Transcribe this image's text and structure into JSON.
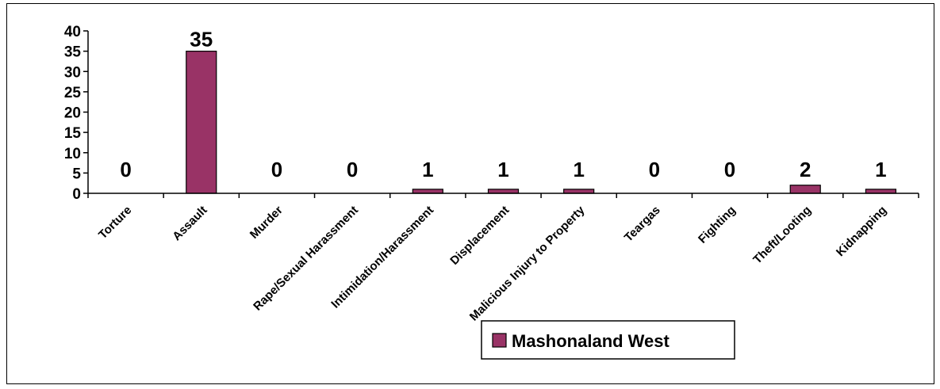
{
  "chart_data": {
    "type": "bar",
    "categories": [
      "Torture",
      "Assault",
      "Murder",
      "Rape/Sexual Harassment",
      "Intimidation/Harassment",
      "Displacement",
      "Malicious Injury to Property",
      "Teargas",
      "Fighting",
      "Theft/Looting",
      "Kidnapping"
    ],
    "series": [
      {
        "name": "Mashonaland West",
        "values": [
          0,
          35,
          0,
          0,
          1,
          1,
          1,
          0,
          0,
          2,
          1
        ]
      }
    ],
    "ylim": [
      0,
      40
    ],
    "yticks": [
      0,
      5,
      10,
      15,
      20,
      25,
      30,
      35,
      40
    ],
    "data_labels": [
      "0",
      "35",
      "0",
      "0",
      "1",
      "1",
      "1",
      "0",
      "0",
      "2",
      "1"
    ],
    "bar_color": "#993366",
    "grid": false,
    "legend": "bottom-center"
  }
}
